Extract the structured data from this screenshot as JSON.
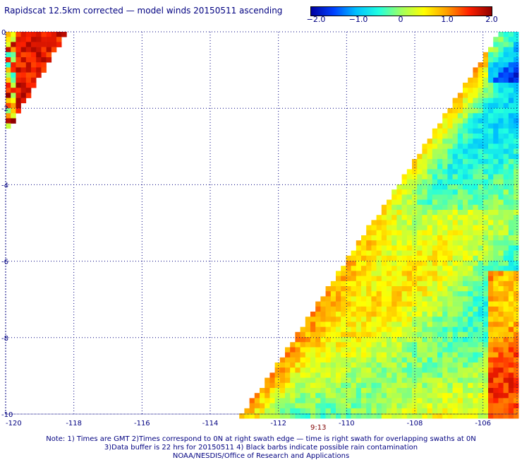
{
  "title": "Rapidscat 12.5km corrected — model winds 20150511 ascending",
  "colorbar": {
    "labels": [
      "−2.0",
      "−1.0",
      "0",
      "1.0",
      "2.0"
    ],
    "min": -2.0,
    "max": 2.0,
    "colors": [
      "#0000a0",
      "#0040ff",
      "#00c0ff",
      "#20ffe0",
      "#a0ff60",
      "#ffff00",
      "#ffa000",
      "#ff2000",
      "#900000"
    ]
  },
  "map": {
    "lon_range": [
      -120,
      -105
    ],
    "lat_range": [
      -10,
      0
    ],
    "x_ticks": [
      {
        "value": -120,
        "label": "-120"
      },
      {
        "value": -118,
        "label": "-118"
      },
      {
        "value": -116,
        "label": "-116"
      },
      {
        "value": -114,
        "label": "-114"
      },
      {
        "value": -112,
        "label": "-112"
      },
      {
        "value": -110,
        "label": "-110"
      },
      {
        "value": -108,
        "label": "-108"
      },
      {
        "value": -106,
        "label": "-106"
      }
    ],
    "y_ticks": [
      {
        "value": 0,
        "label": "0"
      },
      {
        "value": -2,
        "label": "-2"
      },
      {
        "value": -4,
        "label": "-4"
      },
      {
        "value": -6,
        "label": "-6"
      },
      {
        "value": -8,
        "label": "-8"
      },
      {
        "value": -10,
        "label": "-10"
      }
    ],
    "grid": true,
    "swath_time": "9:13"
  },
  "footer": {
    "note_line1": "Note: 1) Times are GMT 2)Times correspond to 0N at right swath edge — time is right swath for overlapping swaths at 0N",
    "note_line2": "3)Data buffer is 22 hrs for 20150511 4) Black barbs indicate possible rain contamination",
    "credit": "NOAA/NESDIS/Office of Research and Applications"
  }
}
